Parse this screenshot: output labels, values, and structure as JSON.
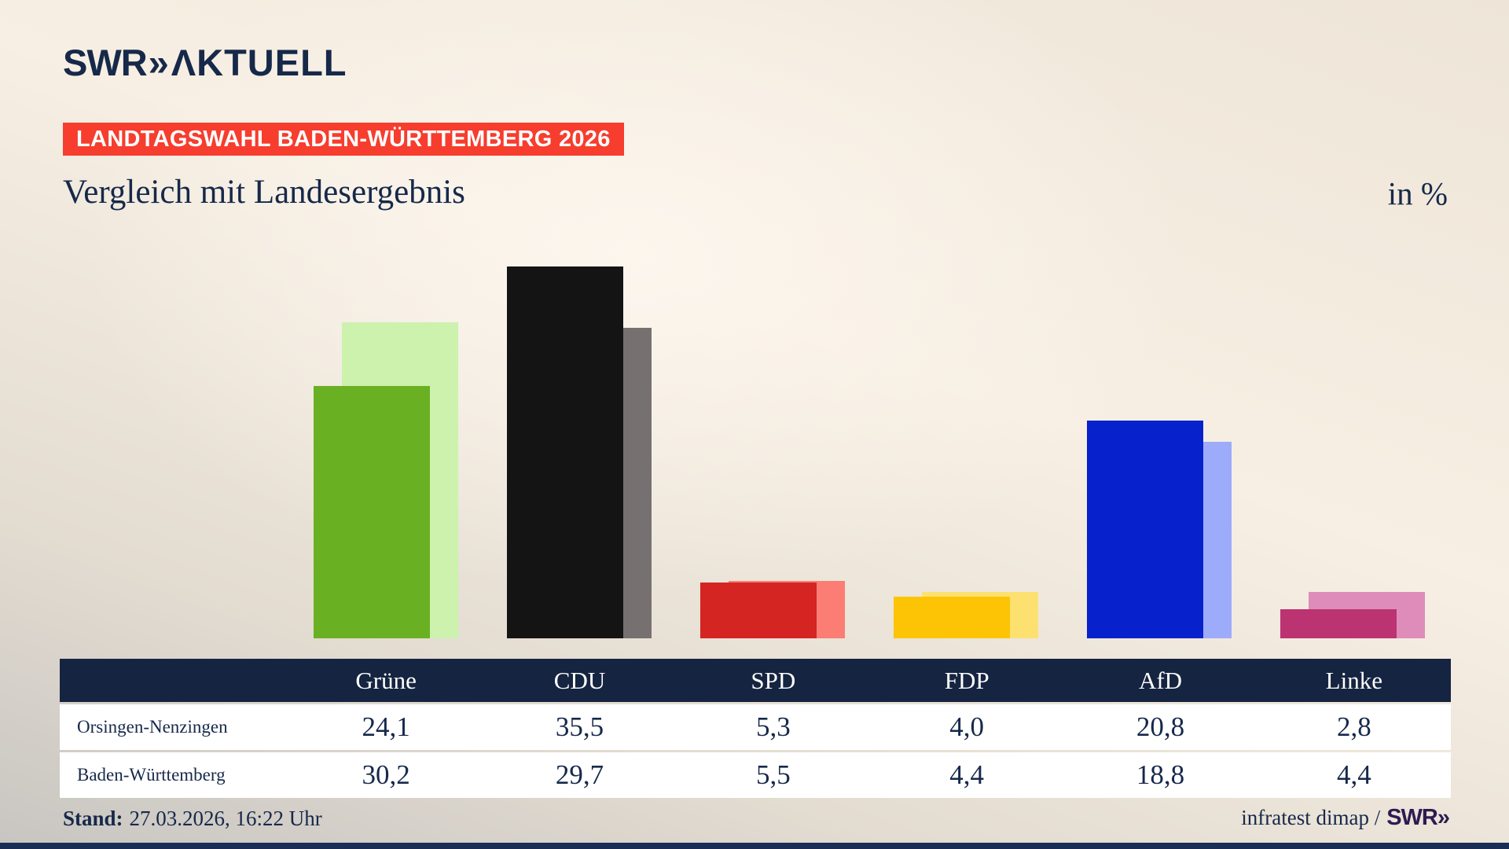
{
  "brand": {
    "logo_swr": "SWR",
    "logo_chevrons": "»",
    "logo_word": "ΛKTUELL"
  },
  "header": {
    "badge": "LANDTAGSWAHL BADEN-WÜRTTEMBERG 2026",
    "title": "Vergleich mit Landesergebnis",
    "unit_label": "in %"
  },
  "footer": {
    "stand_label": "Stand:",
    "stand_value": "27.03.2026, 16:22 Uhr",
    "source_text": "infratest dimap /",
    "source_logo": "SWR»"
  },
  "theme": {
    "navy": "#16294a",
    "badge_red": "#f63d2e",
    "table_header": "#152440",
    "footer_logo": "#2c1c50",
    "bottom_strip": "#1a2d55",
    "page_background": "#f6eee1"
  },
  "chart_data": {
    "type": "bar",
    "title": "Vergleich mit Landesergebnis",
    "unit": "in %",
    "categories": [
      "Grüne",
      "CDU",
      "SPD",
      "FDP",
      "AfD",
      "Linke"
    ],
    "series": [
      {
        "name": "Orsingen-Nenzingen",
        "role": "foreground-local-result",
        "values": [
          24.1,
          35.5,
          5.3,
          4.0,
          20.8,
          2.8
        ]
      },
      {
        "name": "Baden-Württemberg",
        "role": "background-state-result",
        "values": [
          30.2,
          29.7,
          5.5,
          4.4,
          18.8,
          4.4
        ]
      }
    ],
    "value_labels": [
      [
        "24,1",
        "35,5",
        "5,3",
        "4,0",
        "20,8",
        "2,8"
      ],
      [
        "30,2",
        "29,7",
        "5,5",
        "4,4",
        "18,8",
        "4,4"
      ]
    ],
    "colors": {
      "local": [
        "#6ab023",
        "#141414",
        "#d42523",
        "#fdc405",
        "#0721cd",
        "#bb3371"
      ],
      "state": [
        "#cdf2ad",
        "#767170",
        "#fb7d74",
        "#fde170",
        "#9dabfb",
        "#de8cba"
      ]
    },
    "ylim": [
      0,
      36
    ],
    "grid": false,
    "legend_position": "table-below-chart",
    "decimal_separator": ","
  }
}
